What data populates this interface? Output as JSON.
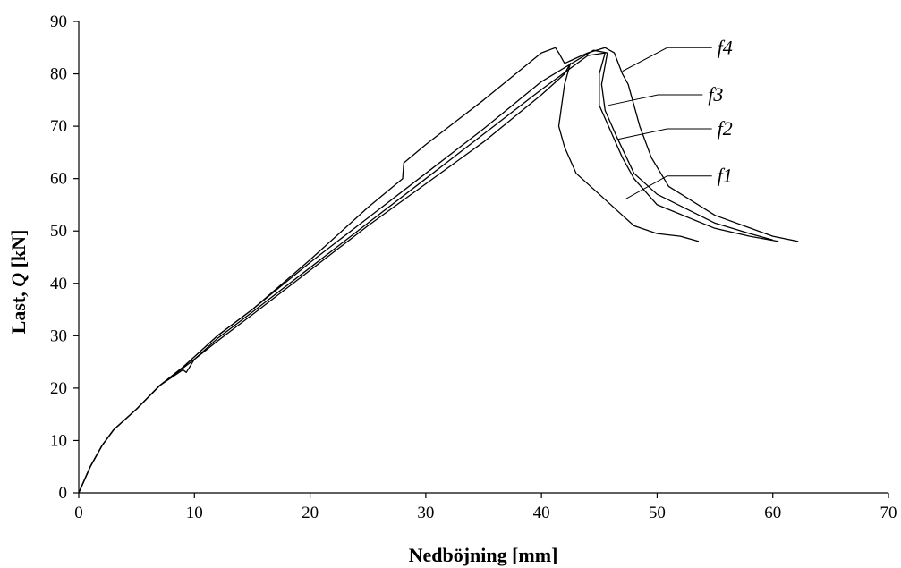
{
  "chart_data": {
    "type": "line",
    "xlabel": "Nedböjning [mm]",
    "ylabel_prefix": "Last, ",
    "ylabel_symbol": "Q",
    "ylabel_suffix": " [kN]",
    "xlim": [
      0,
      70
    ],
    "ylim": [
      0,
      90
    ],
    "xticks": [
      0,
      10,
      20,
      30,
      40,
      50,
      60,
      70
    ],
    "yticks": [
      0,
      10,
      20,
      30,
      40,
      50,
      60,
      70,
      80,
      90
    ],
    "grid": false,
    "legend": "none",
    "series": [
      {
        "name": "f1",
        "x": [
          0,
          1,
          2,
          3,
          5,
          7,
          9,
          9.3,
          10,
          12,
          15,
          20,
          25,
          30,
          35,
          40,
          42,
          42.5,
          42,
          41.5,
          42,
          43,
          45,
          47,
          48,
          50,
          52,
          53.6
        ],
        "y": [
          0,
          5,
          9,
          12,
          16,
          20.5,
          23.5,
          23,
          25.5,
          29,
          34,
          42.5,
          51,
          59,
          67,
          76,
          80,
          82,
          78,
          70,
          66,
          61,
          57,
          53,
          51,
          49.5,
          49,
          48
        ]
      },
      {
        "name": "f2",
        "x": [
          0,
          1,
          2,
          3,
          5,
          7,
          9,
          10,
          12,
          15,
          20,
          25,
          30,
          35,
          40,
          44,
          45.5,
          45,
          45,
          46,
          47,
          48,
          50,
          55,
          58,
          60.5
        ],
        "y": [
          0,
          5,
          9,
          12,
          16,
          20.5,
          23.8,
          25.5,
          29.5,
          34.5,
          43,
          51.5,
          60,
          68.5,
          77,
          83.5,
          84,
          80,
          74,
          69,
          64,
          60,
          55,
          50.5,
          49,
          48
        ]
      },
      {
        "name": "f3",
        "x": [
          0,
          1,
          2,
          3,
          5,
          7,
          9,
          10,
          12,
          15,
          20,
          25,
          30,
          35,
          40,
          44.5,
          45.7,
          45.2,
          45.5,
          46.5,
          48,
          50,
          55,
          58,
          60
        ],
        "y": [
          0,
          5,
          9,
          12,
          16,
          20.5,
          24,
          26,
          30,
          35,
          44,
          52.5,
          61,
          69.5,
          78.5,
          84.5,
          84,
          78,
          73,
          68,
          61,
          57,
          51.5,
          49.5,
          48.3
        ]
      },
      {
        "name": "f4",
        "x": [
          0,
          1,
          2,
          3,
          5,
          7,
          9,
          10,
          12,
          15,
          20,
          25,
          28,
          28.1,
          30,
          35,
          40,
          41.2,
          41.5,
          42,
          44,
          45.5,
          46.3,
          47,
          47.5,
          48.5,
          49.5,
          51,
          55,
          60,
          62.2
        ],
        "y": [
          0,
          5,
          9,
          12,
          16,
          20.5,
          24,
          26,
          30,
          35,
          44.5,
          54.5,
          60,
          63,
          66.5,
          75,
          84,
          85,
          84,
          82,
          84,
          85,
          84,
          80,
          78,
          70,
          64,
          58.5,
          53,
          49,
          48
        ]
      }
    ],
    "annotations": [
      {
        "text": "f4",
        "x": 55.2,
        "y": 85,
        "target_x": 47.0,
        "target_y": 80.5
      },
      {
        "text": "f3",
        "x": 54.4,
        "y": 76,
        "target_x": 45.8,
        "target_y": 74
      },
      {
        "text": "f2",
        "x": 55.2,
        "y": 69.5,
        "target_x": 46.6,
        "target_y": 67.5
      },
      {
        "text": "f1",
        "x": 55.2,
        "y": 60.5,
        "target_x": 47.2,
        "target_y": 56
      }
    ]
  }
}
